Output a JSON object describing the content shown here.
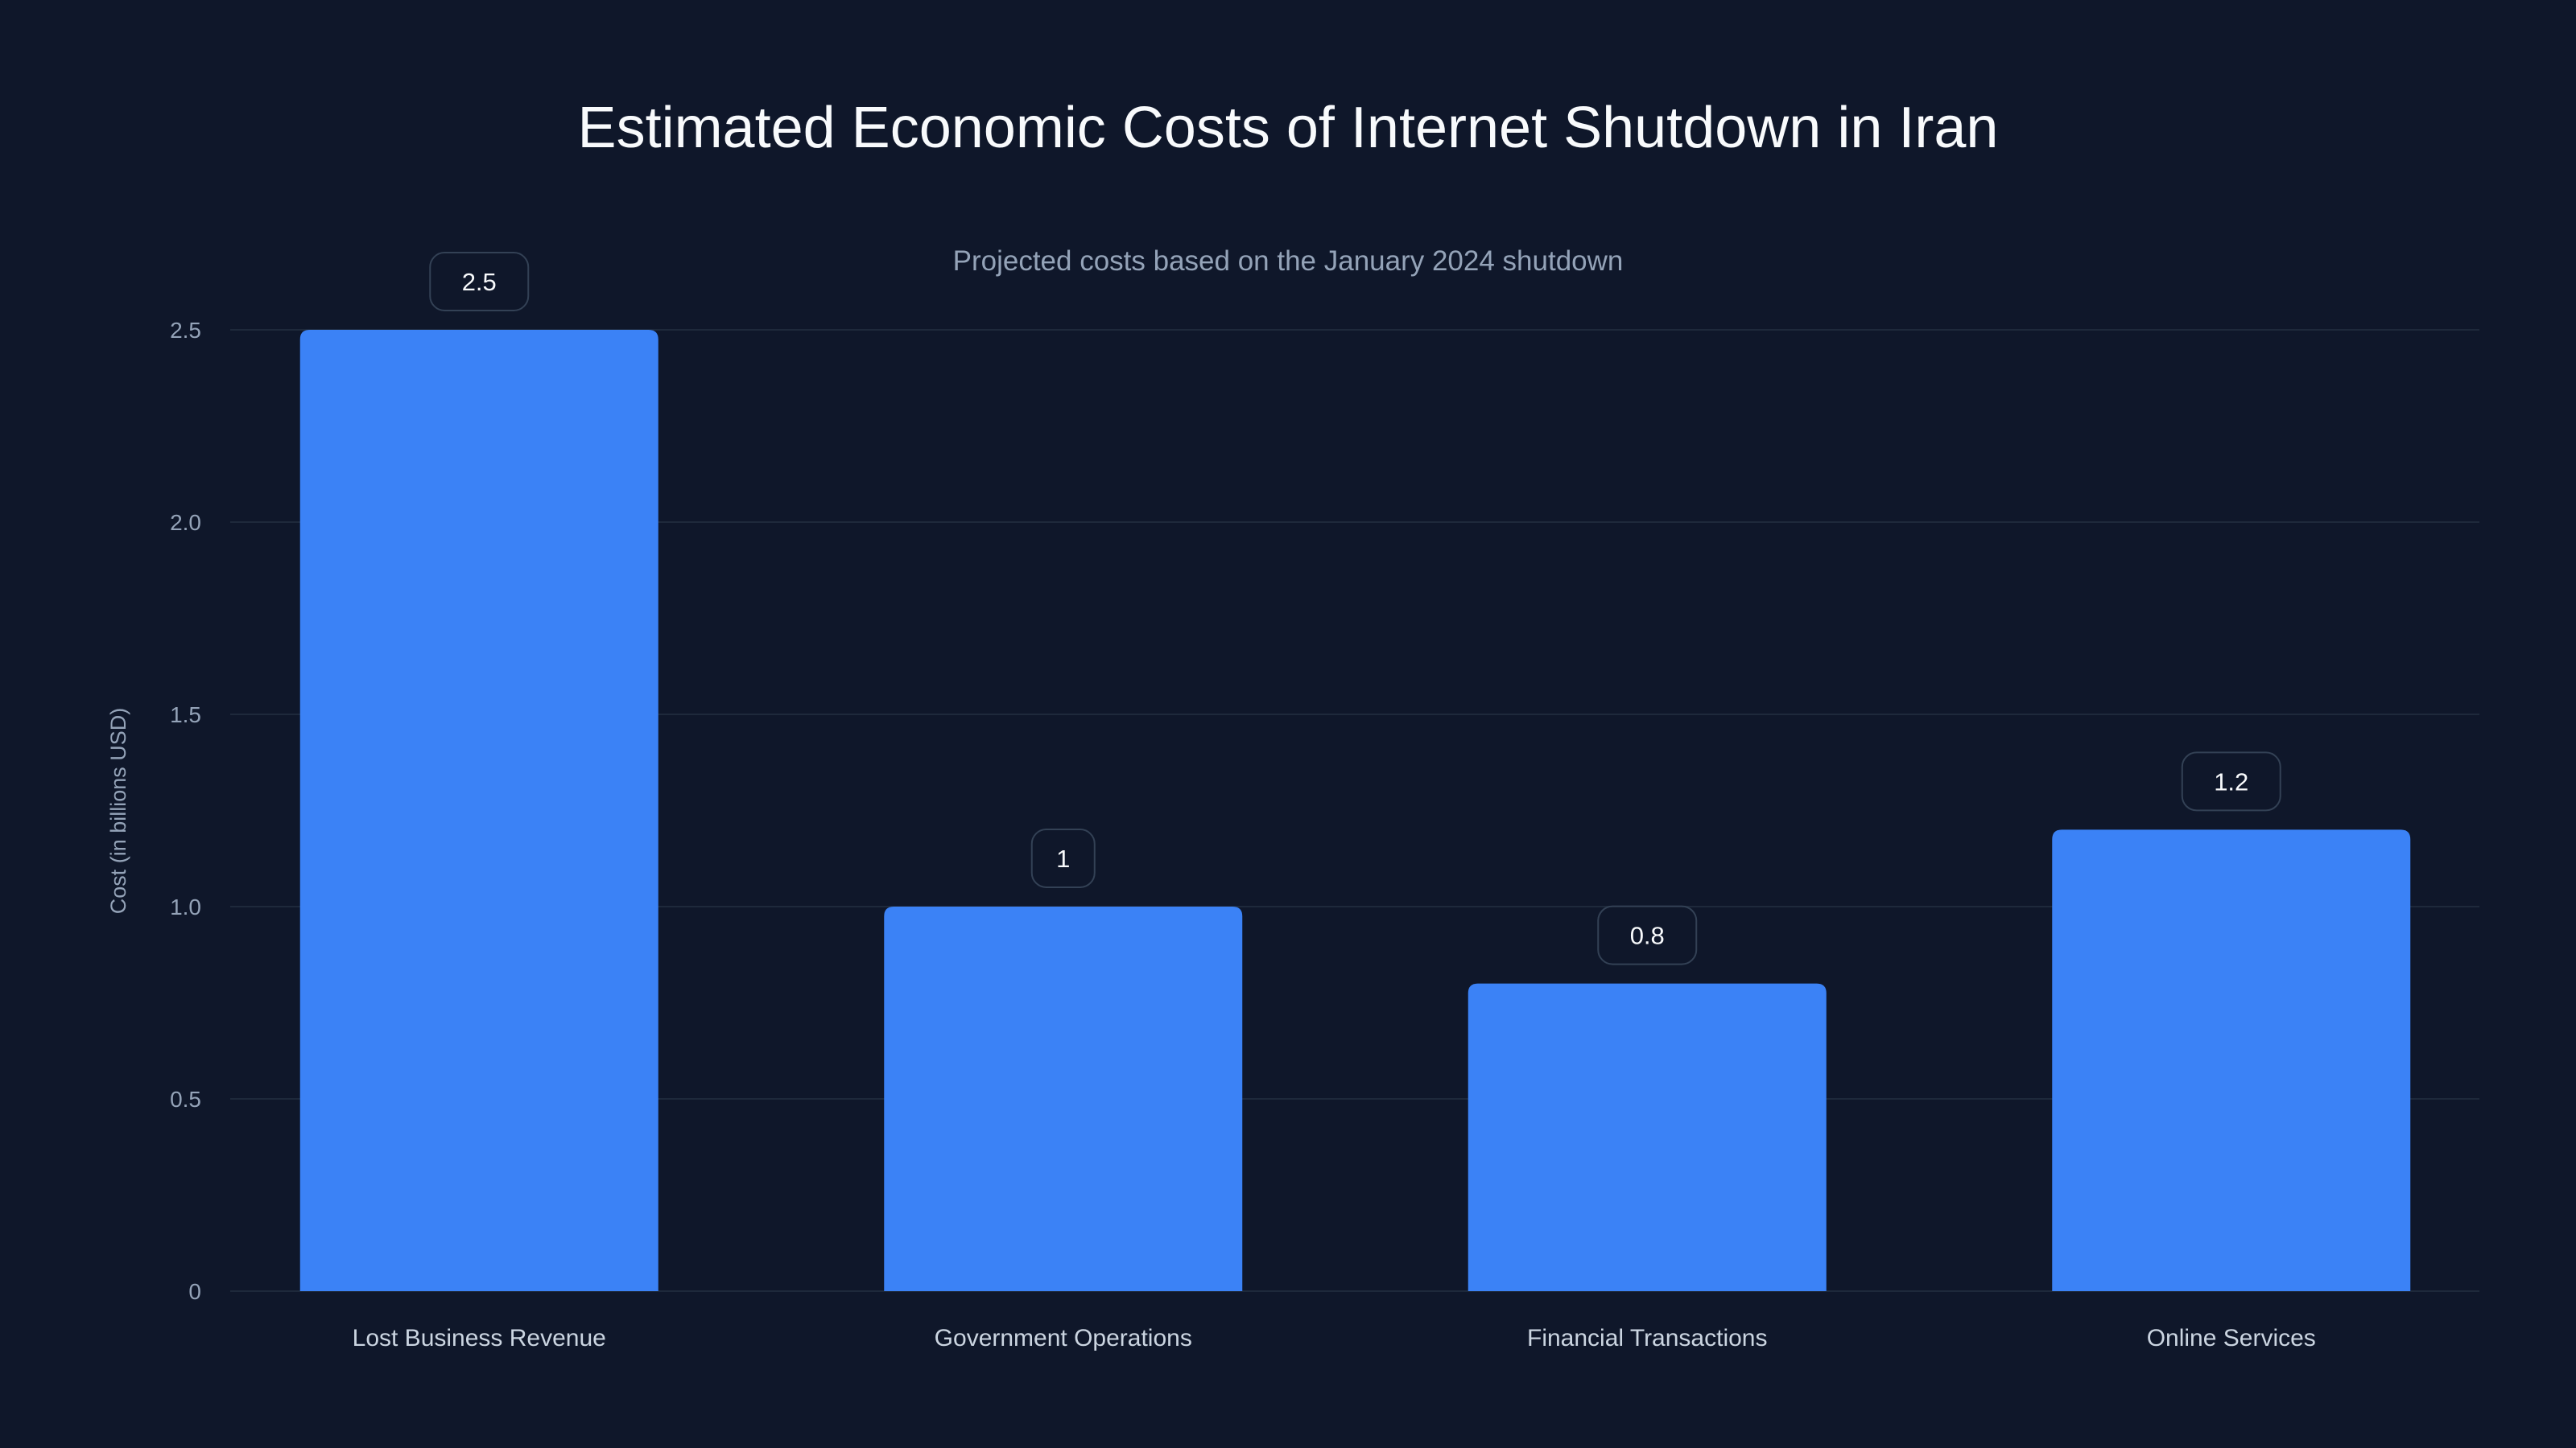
{
  "chart_data": {
    "type": "bar",
    "title": "Estimated Economic Costs of Internet Shutdown in Iran",
    "subtitle": "Projected costs based on the January 2024 shutdown",
    "xlabel": "",
    "ylabel": "Cost (in billions USD)",
    "categories": [
      "Lost Business Revenue",
      "Government Operations",
      "Financial Transactions",
      "Online Services"
    ],
    "values": [
      2.5,
      1,
      0.8,
      1.2
    ],
    "data_labels": [
      "2.5",
      "1",
      "0.8",
      "1.2"
    ],
    "ylim": [
      0,
      2.5
    ],
    "yticks": [
      0,
      0.5,
      1.0,
      1.5,
      2.0,
      2.5
    ],
    "ytick_labels": [
      "0",
      "0.5",
      "1.0",
      "1.5",
      "2.0",
      "2.5"
    ],
    "grid": true,
    "legend": "none",
    "colors": {
      "background": "#0f172a",
      "bar": "#3b82f6",
      "grid": "#1e293b",
      "tick": "#94a3b8",
      "label_border": "#334155"
    }
  }
}
